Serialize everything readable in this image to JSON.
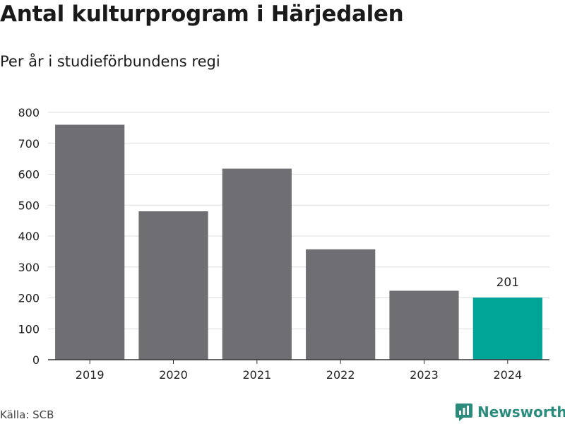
{
  "title": "Antal kulturprogram i Härjedalen",
  "subtitle": "Per år i studieförbundens regi",
  "source": "Källa: SCB",
  "brand": {
    "name": "Newsworthy",
    "icon": "newsworthy-logo-icon",
    "color": "#2b8c7e"
  },
  "colors": {
    "bar": "#6f6e73",
    "highlight": "#00a597",
    "grid": "#dddddd",
    "axis": "#333333"
  },
  "chart_data": {
    "type": "bar",
    "categories": [
      "2019",
      "2020",
      "2021",
      "2022",
      "2023",
      "2024"
    ],
    "values": [
      760,
      480,
      618,
      357,
      223,
      201
    ],
    "highlight_index": 5,
    "highlight_label": "201",
    "ylim": [
      0,
      800
    ],
    "yticks": [
      0,
      100,
      200,
      300,
      400,
      500,
      600,
      700,
      800
    ],
    "grid": true
  }
}
